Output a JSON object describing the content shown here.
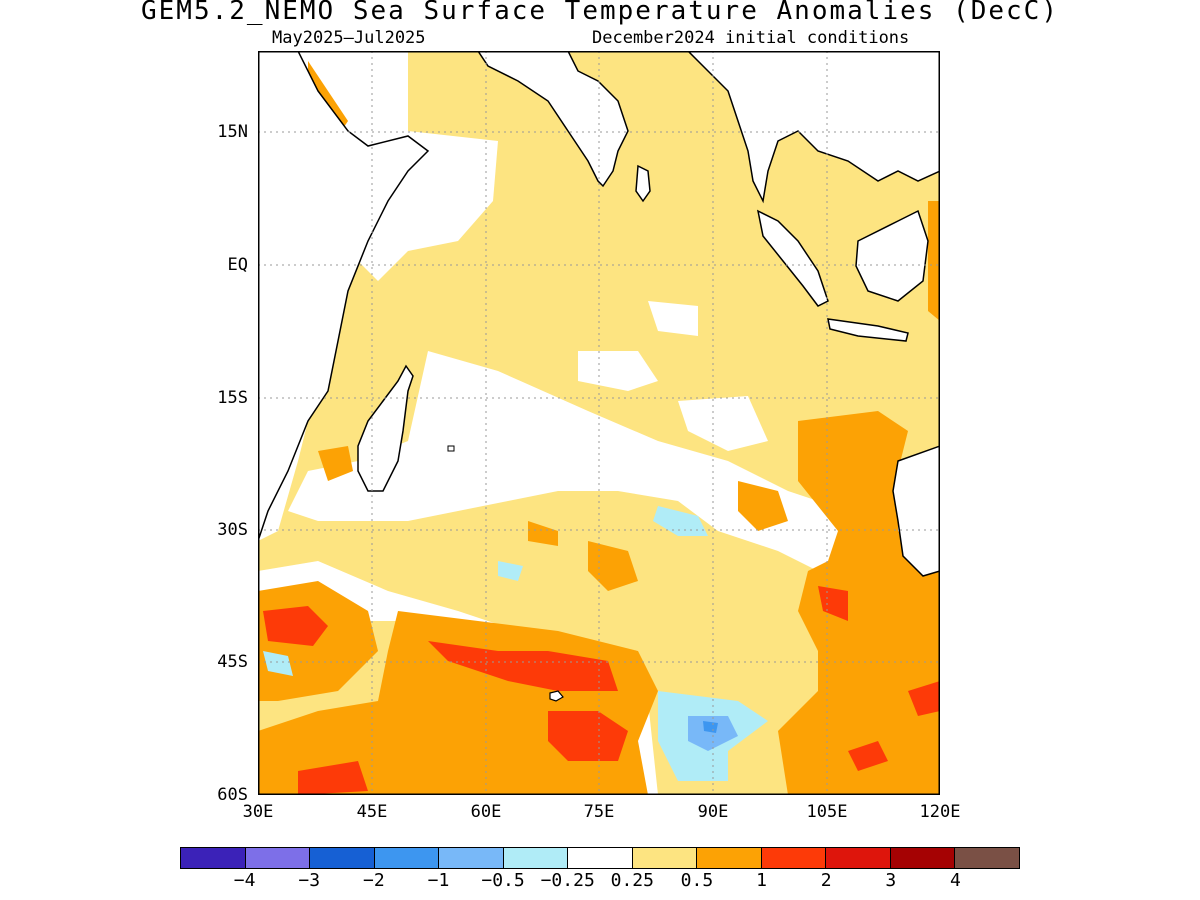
{
  "title": "GEM5.2_NEMO Sea Surface Temperature Anomalies (DecC)",
  "subtitle_left": "May2025–Jul2025",
  "subtitle_right": "December2024 initial conditions",
  "axes": {
    "lat_labels": [
      "15N",
      "EQ",
      "15S",
      "30S",
      "45S",
      "60S"
    ],
    "lon_labels": [
      "30E",
      "45E",
      "60E",
      "75E",
      "90E",
      "105E",
      "120E"
    ],
    "lat_range": [
      -60,
      24
    ],
    "lon_range": [
      30,
      120
    ],
    "grid": "dotted"
  },
  "colorbar": {
    "colors": [
      "#3b22b8",
      "#7d6fe8",
      "#1660d4",
      "#3d96f0",
      "#78b8f8",
      "#b0ecf7",
      "#ffffff",
      "#fde481",
      "#fca205",
      "#fd3a08",
      "#de150c",
      "#a50203",
      "#7a5045"
    ],
    "labels": [
      "−4",
      "−3",
      "−2",
      "−1",
      "−0.5",
      "−0.25",
      "0.25",
      "0.5",
      "1",
      "2",
      "3",
      "4"
    ]
  },
  "legend_units": "DecC"
}
